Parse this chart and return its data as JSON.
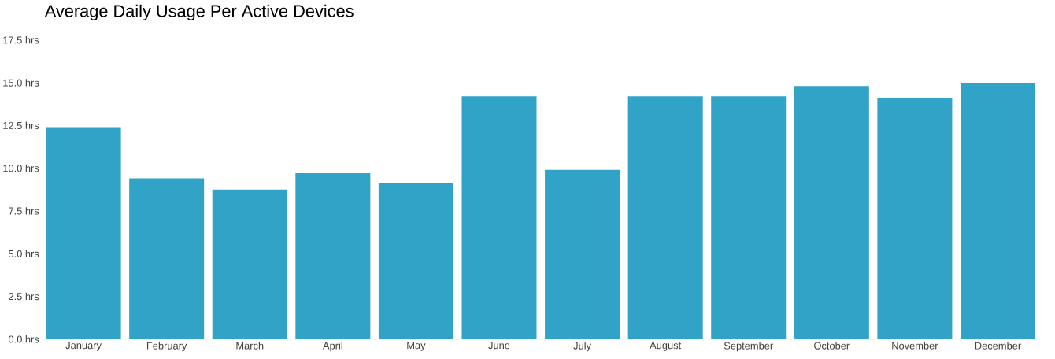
{
  "chart_data": {
    "type": "bar",
    "title": "Average Daily Usage Per Active Devices",
    "categories": [
      "January",
      "February",
      "March",
      "April",
      "May",
      "June",
      "July",
      "August",
      "September",
      "October",
      "November",
      "December"
    ],
    "values": [
      12.4,
      9.4,
      8.75,
      9.7,
      9.1,
      14.2,
      9.9,
      14.2,
      14.2,
      14.8,
      14.1,
      15.0
    ],
    "color": "#30a3c6",
    "ylim": [
      0,
      17.5
    ],
    "yticks": [
      {
        "value": 0,
        "label": "0.0 hrs"
      },
      {
        "value": 2.5,
        "label": "2.5 hrs"
      },
      {
        "value": 5,
        "label": "5.0 hrs"
      },
      {
        "value": 7.5,
        "label": "7.5 hrs"
      },
      {
        "value": 10,
        "label": "10.0 hrs"
      },
      {
        "value": 12.5,
        "label": "12.5 hrs"
      },
      {
        "value": 15,
        "label": "15.0 hrs"
      },
      {
        "value": 17.5,
        "label": "17.5 hrs"
      }
    ]
  }
}
